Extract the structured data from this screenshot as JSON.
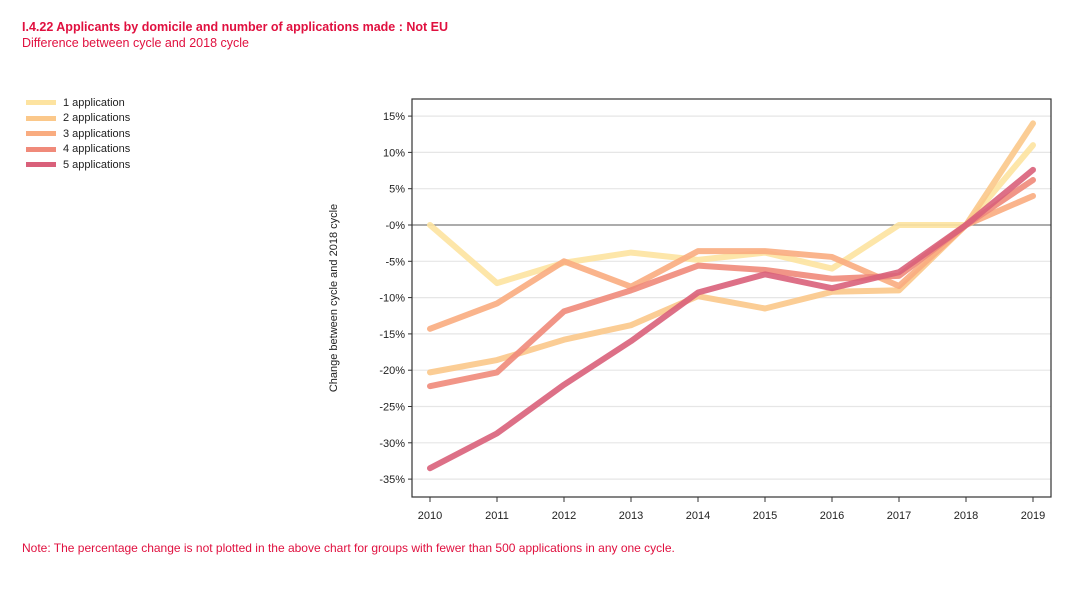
{
  "header": {
    "title": "I.4.22 Applicants by domicile and number of applications made : Not EU",
    "subtitle": "Difference between cycle and 2018 cycle"
  },
  "note": "Note: The percentage change is not plotted in the above chart for groups with fewer than 500 applications in any one cycle.",
  "chart_data": {
    "type": "line",
    "title": "I.4.22 Applicants by domicile and number of applications made : Not EU",
    "subtitle": "Difference between cycle and 2018 cycle",
    "xlabel": "",
    "ylabel": "Change between cycle and 2018 cycle",
    "x": [
      "2010",
      "2011",
      "2012",
      "2013",
      "2014",
      "2015",
      "2016",
      "2017",
      "2018",
      "2019"
    ],
    "ylim": [
      -37,
      18
    ],
    "yticks": [
      15,
      10,
      5,
      0,
      -5,
      -10,
      -15,
      -20,
      -25,
      -30,
      -35
    ],
    "ytick_labels": [
      "15%",
      "10%",
      "5%",
      "-0%",
      "-5%",
      "-10%",
      "-15%",
      "-20%",
      "-25%",
      "-30%",
      "-35%"
    ],
    "grid": true,
    "legend_position": "top-left",
    "series": [
      {
        "name": "1 application",
        "color": "#fde3a0",
        "values": [
          0,
          -8,
          -5.2,
          -3.8,
          -4.8,
          -3.8,
          -6,
          0,
          0,
          11
        ]
      },
      {
        "name": "2 applications",
        "color": "#fbc88a",
        "values": [
          -20.3,
          -18.6,
          -15.8,
          -13.8,
          -9.8,
          -11.5,
          -9.2,
          -9,
          0,
          14
        ]
      },
      {
        "name": "3 applications",
        "color": "#f9ac80",
        "values": [
          -14.3,
          -10.8,
          -5,
          -8.5,
          -3.6,
          -3.6,
          -4.4,
          -8.4,
          0,
          4
        ]
      },
      {
        "name": "4 applications",
        "color": "#f08a7a",
        "values": [
          -22.2,
          -20.3,
          -11.9,
          -9,
          -5.6,
          -6.2,
          -7.4,
          -7,
          0,
          6.2
        ]
      },
      {
        "name": "5 applications",
        "color": "#d9607a",
        "values": [
          -33.5,
          -28.7,
          -22,
          -16,
          -9.3,
          -6.8,
          -8.7,
          -6.5,
          0,
          7.6
        ]
      }
    ]
  }
}
